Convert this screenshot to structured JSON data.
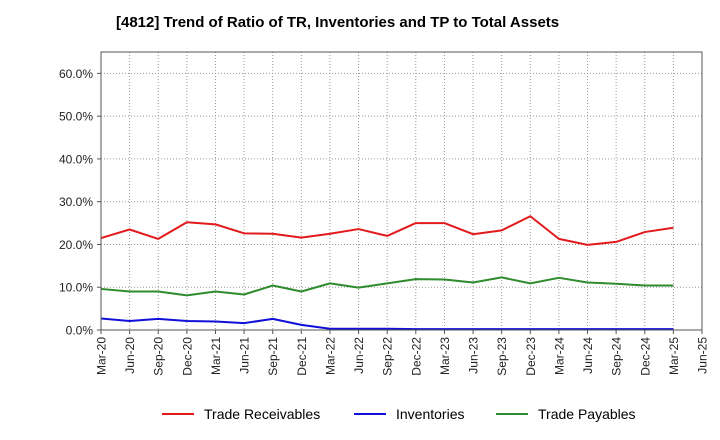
{
  "title": "[4812]  Trend of Ratio of TR, Inventories and TP to Total Assets",
  "chart_data": {
    "type": "line",
    "title": "[4812]  Trend of Ratio of TR, Inventories and TP to Total Assets",
    "xlabel": "",
    "ylabel": "",
    "ylim": [
      0,
      65
    ],
    "y_ticks": [
      "0.0%",
      "10.0%",
      "20.0%",
      "30.0%",
      "40.0%",
      "50.0%",
      "60.0%"
    ],
    "y_tick_values": [
      0,
      10,
      20,
      30,
      40,
      50,
      60
    ],
    "x_ticks": [
      "Mar-20",
      "Jun-20",
      "Sep-20",
      "Dec-20",
      "Mar-21",
      "Jun-21",
      "Sep-21",
      "Dec-21",
      "Mar-22",
      "Jun-22",
      "Sep-22",
      "Dec-22",
      "Mar-23",
      "Jun-23",
      "Sep-23",
      "Dec-23",
      "Mar-24",
      "Jun-24",
      "Sep-24",
      "Dec-24",
      "Mar-25",
      "Jun-25"
    ],
    "grid": true,
    "legend_position": "bottom",
    "x": [
      "Mar-20",
      "Jun-20",
      "Sep-20",
      "Dec-20",
      "Mar-21",
      "Jun-21",
      "Sep-21",
      "Dec-21",
      "Mar-22",
      "Jun-22",
      "Sep-22",
      "Dec-22",
      "Mar-23",
      "Jun-23",
      "Sep-23",
      "Dec-23",
      "Mar-24",
      "Jun-24",
      "Sep-24",
      "Dec-24",
      "Mar-25"
    ],
    "series": [
      {
        "name": "Trade Receivables",
        "color": "#e31a1c",
        "values": [
          21.5,
          23.5,
          21.3,
          25.2,
          24.7,
          22.6,
          22.5,
          21.6,
          22.5,
          23.6,
          22.0,
          25.0,
          25.0,
          22.4,
          23.3,
          26.6,
          21.3,
          19.9,
          20.6,
          22.9,
          23.9
        ]
      },
      {
        "name": "Inventories",
        "color": "#1010d8",
        "values": [
          2.7,
          2.1,
          2.6,
          2.1,
          2.0,
          1.6,
          2.6,
          1.2,
          0.3,
          0.3,
          0.3,
          0.2,
          0.2,
          0.2,
          0.2,
          0.2,
          0.2,
          0.2,
          0.2,
          0.2,
          0.2
        ]
      },
      {
        "name": "Trade Payables",
        "color": "#2e8b2e",
        "values": [
          9.6,
          9.0,
          9.0,
          8.1,
          9.0,
          8.3,
          10.4,
          9.0,
          10.9,
          9.9,
          10.9,
          11.9,
          11.8,
          11.1,
          12.3,
          10.9,
          12.2,
          11.1,
          10.8,
          10.4,
          10.4
        ]
      }
    ]
  }
}
